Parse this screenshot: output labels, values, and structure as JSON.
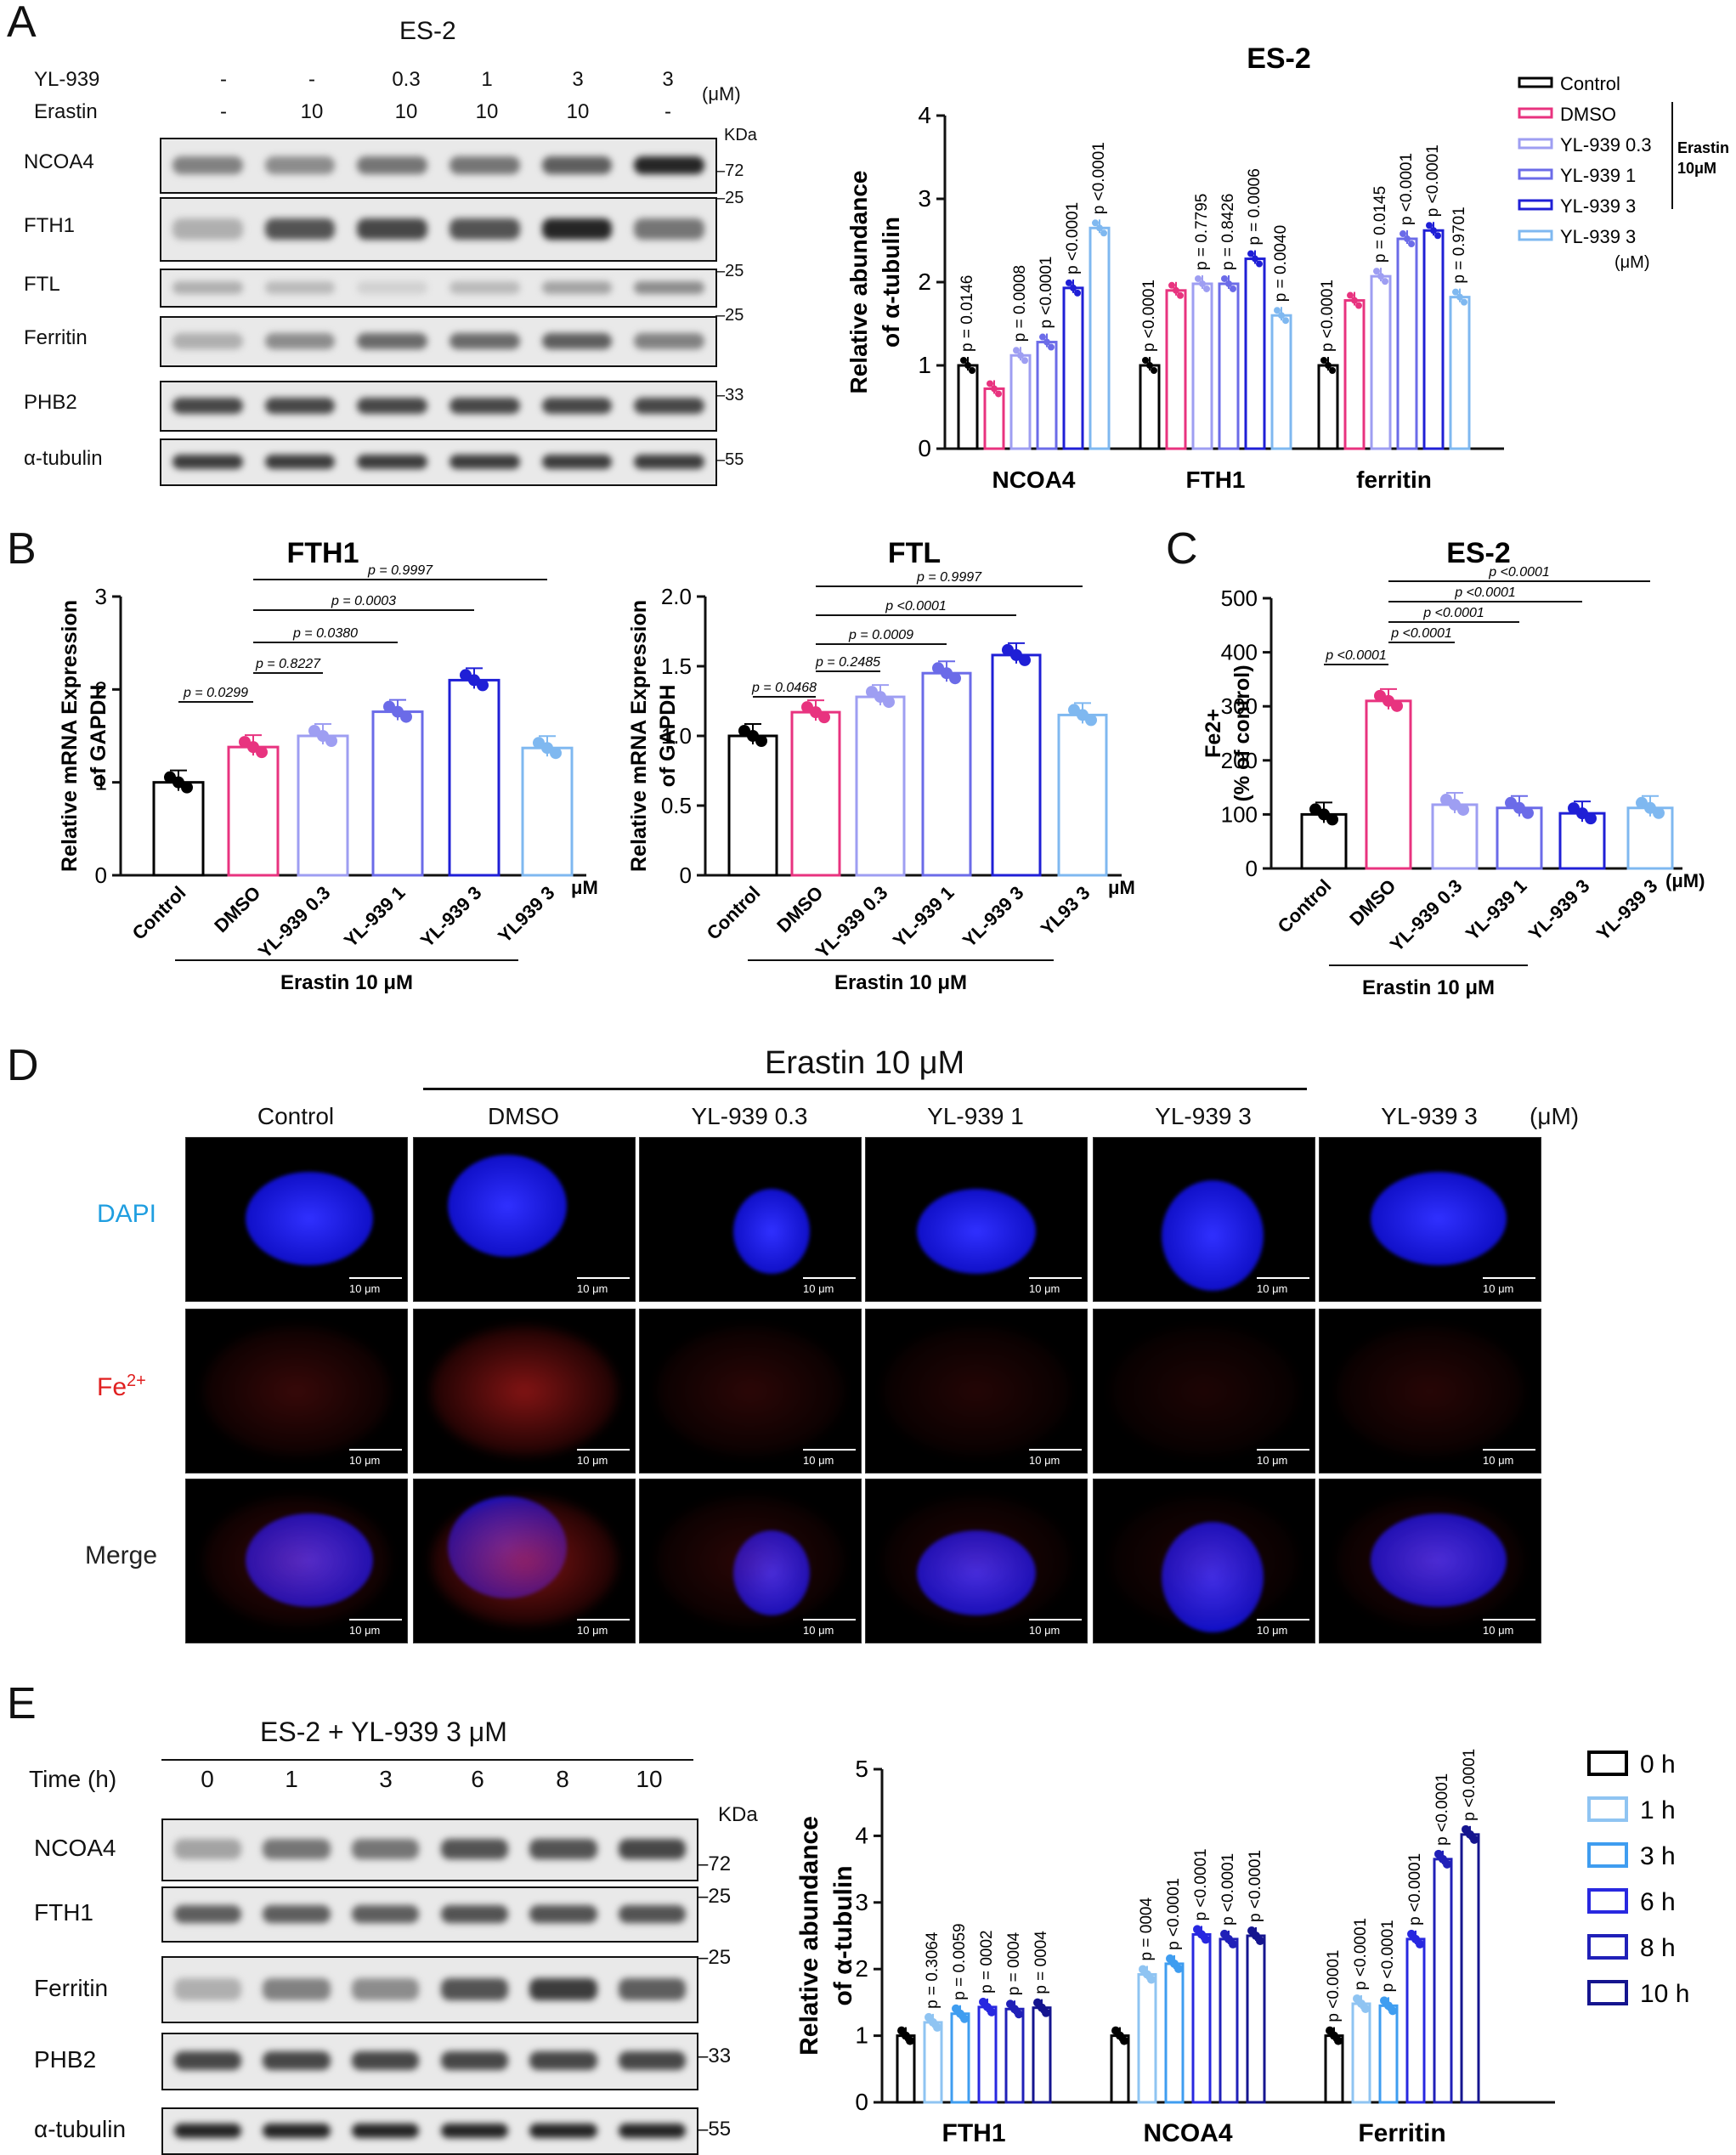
{
  "panel_letters": {
    "A": "A",
    "B": "B",
    "C": "C",
    "D": "D",
    "E": "E"
  },
  "colors": {
    "control": "#000000",
    "dmso": "#e8337f",
    "yl03": "#9e9ef2",
    "yl1": "#6b6be8",
    "yl3": "#1f1fd6",
    "yl939_3": "#7fb8f0",
    "fe_red": "#e02020",
    "dapi_blue": "#1f9ee0"
  },
  "panelA": {
    "cell_title": "ES-2",
    "row1_label": "YL-939",
    "row1_values": [
      "-",
      "-",
      "0.3",
      "1",
      "3",
      "3"
    ],
    "row1_unit": "(μM)",
    "row2_label": "Erastin",
    "row2_values": [
      "-",
      "10",
      "10",
      "10",
      "10",
      "-"
    ],
    "kda": "KDa",
    "blots": [
      {
        "name": "NCOA4",
        "mw": "72"
      },
      {
        "name": "FTH1",
        "mw": "25"
      },
      {
        "name": "FTL",
        "mw": "25"
      },
      {
        "name": "Ferritin",
        "mw": "25"
      },
      {
        "name": "PHB2",
        "mw": "33"
      },
      {
        "name": "α-tubulin",
        "mw": "55"
      }
    ],
    "band_intensity": [
      [
        0.55,
        0.5,
        0.6,
        0.6,
        0.7,
        0.95
      ],
      [
        0.35,
        0.75,
        0.8,
        0.75,
        0.95,
        0.6
      ],
      [
        0.35,
        0.3,
        0.2,
        0.3,
        0.4,
        0.5
      ],
      [
        0.35,
        0.5,
        0.65,
        0.65,
        0.7,
        0.55
      ],
      [
        0.8,
        0.8,
        0.8,
        0.8,
        0.8,
        0.8
      ],
      [
        0.85,
        0.85,
        0.85,
        0.85,
        0.85,
        0.85
      ]
    ]
  },
  "chart_data": [
    {
      "id": "A-bar",
      "type": "bar",
      "title": "ES-2",
      "ylabel": "Relative abundance of α-tubulin",
      "ylim": [
        0,
        4
      ],
      "yticks": [
        "0",
        "1",
        "2",
        "3",
        "4"
      ],
      "categories": [
        "NCOA4",
        "FTH1",
        "ferritin"
      ],
      "series": [
        {
          "name": "Control",
          "values": [
            1.0,
            1.0,
            1.0
          ]
        },
        {
          "name": "DMSO",
          "values": [
            0.72,
            1.9,
            1.78
          ]
        },
        {
          "name": "YL-939 0.3",
          "values": [
            1.12,
            1.98,
            2.07
          ]
        },
        {
          "name": "YL-939 1",
          "values": [
            1.28,
            1.98,
            2.52
          ]
        },
        {
          "name": "YL-939 3",
          "values": [
            1.93,
            2.28,
            2.62
          ]
        },
        {
          "name": "YL-939 3",
          "values": [
            2.65,
            1.6,
            1.82
          ]
        }
      ],
      "pvalues": [
        [
          "p = 0.0146",
          "",
          "p = 0.0008",
          "p <0.0001",
          "p <0.0001",
          "p <0.0001"
        ],
        [
          "p <0.0001",
          "",
          "p = 0.7795",
          "p = 0.8426",
          "p = 0.0006",
          "p = 0.0040"
        ],
        [
          "p <0.0001",
          "",
          "p = 0.0145",
          "p <0.0001",
          "p <0.0001",
          "p = 0.9701"
        ]
      ],
      "legend": [
        "Control",
        "DMSO",
        "YL-939 0.3",
        "YL-939 1",
        "YL-939 3",
        "YL-939 3"
      ],
      "legend_group": "Erastin 10μM",
      "legend_unit": "(μM)"
    },
    {
      "id": "B-FTH1",
      "type": "bar",
      "title": "FTH1",
      "ylabel": "Relative mRNA Expression of GAPDH",
      "ylim": [
        0,
        3
      ],
      "yticks": [
        "0",
        "1",
        "2",
        "3"
      ],
      "categories": [
        "Control",
        "DMSO",
        "YL-939 0.3",
        "YL-939 1",
        "YL-939 3",
        "YL939 3"
      ],
      "values": [
        1.0,
        1.38,
        1.5,
        1.76,
        2.1,
        1.37
      ],
      "unit": "μM",
      "group": "Erastin 10 μM",
      "brackets": [
        {
          "from": 0,
          "to": 1,
          "label": "p = 0.0299"
        },
        {
          "from": 1,
          "to": 2,
          "label": "p = 0.8227"
        },
        {
          "from": 1,
          "to": 3,
          "label": "p = 0.0380"
        },
        {
          "from": 1,
          "to": 4,
          "label": "p = 0.0003"
        },
        {
          "from": 1,
          "to": 5,
          "label": "p = 0.9997"
        }
      ]
    },
    {
      "id": "B-FTL",
      "type": "bar",
      "title": "FTL",
      "ylabel": "Relative mRNA Expression of GAPDH",
      "ylim": [
        0,
        2
      ],
      "yticks": [
        "0",
        "0.5",
        "1.0",
        "1.5",
        "2.0"
      ],
      "categories": [
        "Control",
        "DMSO",
        "YL-939 0.3",
        "YL-939 1",
        "YL-939 3",
        "YL93 3"
      ],
      "values": [
        1.0,
        1.17,
        1.28,
        1.45,
        1.58,
        1.15
      ],
      "unit": "μM",
      "group": "Erastin 10 μM",
      "brackets": [
        {
          "from": 0,
          "to": 1,
          "label": "p = 0.0468"
        },
        {
          "from": 1,
          "to": 2,
          "label": "p = 0.2485"
        },
        {
          "from": 1,
          "to": 3,
          "label": "p = 0.0009"
        },
        {
          "from": 1,
          "to": 4,
          "label": "p <0.0001"
        },
        {
          "from": 1,
          "to": 5,
          "label": "p = 0.9997"
        }
      ]
    },
    {
      "id": "C",
      "type": "bar",
      "title": "ES-2",
      "ylabel": "Fe2+ (% of control)",
      "ylim": [
        0,
        500
      ],
      "yticks": [
        "0",
        "100",
        "200",
        "300",
        "400",
        "500"
      ],
      "categories": [
        "Control",
        "DMSO",
        "YL-939 0.3",
        "YL-939 1",
        "YL-939 3",
        "YL-939 3"
      ],
      "values": [
        100,
        310,
        118,
        112,
        102,
        112
      ],
      "unit": "(μM)",
      "group": "Erastin 10 μM",
      "brackets": [
        {
          "from": 0,
          "to": 1,
          "label": "p <0.0001"
        },
        {
          "from": 1,
          "to": 2,
          "label": "p <0.0001"
        },
        {
          "from": 1,
          "to": 3,
          "label": "p <0.0001"
        },
        {
          "from": 1,
          "to": 4,
          "label": "p <0.0001"
        },
        {
          "from": 1,
          "to": 5,
          "label": "p <0.0001"
        }
      ]
    },
    {
      "id": "E-bar",
      "type": "bar",
      "ylabel": "Relative abundance of α-tubulin",
      "ylim": [
        0,
        5
      ],
      "yticks": [
        "0",
        "1",
        "2",
        "3",
        "4",
        "5"
      ],
      "categories": [
        "FTH1",
        "NCOA4",
        "Ferritin"
      ],
      "series": [
        {
          "name": "0 h",
          "values": [
            1.0,
            1.0,
            1.0
          ]
        },
        {
          "name": "1 h",
          "values": [
            1.2,
            1.92,
            1.48
          ]
        },
        {
          "name": "3 h",
          "values": [
            1.33,
            2.08,
            1.45
          ]
        },
        {
          "name": "6 h",
          "values": [
            1.43,
            2.52,
            2.45
          ]
        },
        {
          "name": "8 h",
          "values": [
            1.4,
            2.45,
            3.65
          ]
        },
        {
          "name": "10 h",
          "values": [
            1.42,
            2.5,
            4.02
          ]
        }
      ],
      "pvalues": [
        [
          "",
          "p = 0.3064",
          "p = 0.0059",
          "p = 0002",
          "p = 0004",
          "p = 0004"
        ],
        [
          "",
          "p = 0004",
          "p <0.0001",
          "p <0.0001",
          "p <0.0001",
          "p <0.0001"
        ],
        [
          "p <0.0001",
          "p <0.0001",
          "p <0.0001",
          "p <0.0001",
          "p <0.0001",
          "p <0.0001"
        ]
      ],
      "legend": [
        "0 h",
        "1 h",
        "3 h",
        "6 h",
        "8 h",
        "10 h"
      ]
    }
  ],
  "panelD": {
    "header": "Erastin 10 μM",
    "columns": [
      "Control",
      "DMSO",
      "YL-939 0.3",
      "YL-939 1",
      "YL-939 3",
      "YL-939 3"
    ],
    "unit": "(μM)",
    "rows": [
      {
        "label": "DAPI",
        "sup": ""
      },
      {
        "label": "Fe",
        "sup": "2+"
      },
      {
        "label": "Merge",
        "sup": ""
      }
    ],
    "scale_label": "10 μm"
  },
  "panelE": {
    "title": "ES-2 + YL-939 3 μM",
    "time_label": "Time (h)",
    "times": [
      "0",
      "1",
      "3",
      "6",
      "8",
      "10"
    ],
    "kda": "KDa",
    "blots": [
      {
        "name": "NCOA4",
        "mw": "72"
      },
      {
        "name": "FTH1",
        "mw": "25"
      },
      {
        "name": "Ferritin",
        "mw": "25"
      },
      {
        "name": "PHB2",
        "mw": "33"
      },
      {
        "name": "α-tubulin",
        "mw": "55"
      }
    ],
    "band_intensity": [
      [
        0.4,
        0.6,
        0.6,
        0.75,
        0.75,
        0.8
      ],
      [
        0.7,
        0.7,
        0.7,
        0.75,
        0.75,
        0.75
      ],
      [
        0.35,
        0.55,
        0.5,
        0.75,
        0.85,
        0.7
      ],
      [
        0.8,
        0.8,
        0.8,
        0.8,
        0.8,
        0.8
      ],
      [
        0.95,
        0.95,
        0.95,
        0.95,
        0.95,
        0.95
      ]
    ]
  }
}
